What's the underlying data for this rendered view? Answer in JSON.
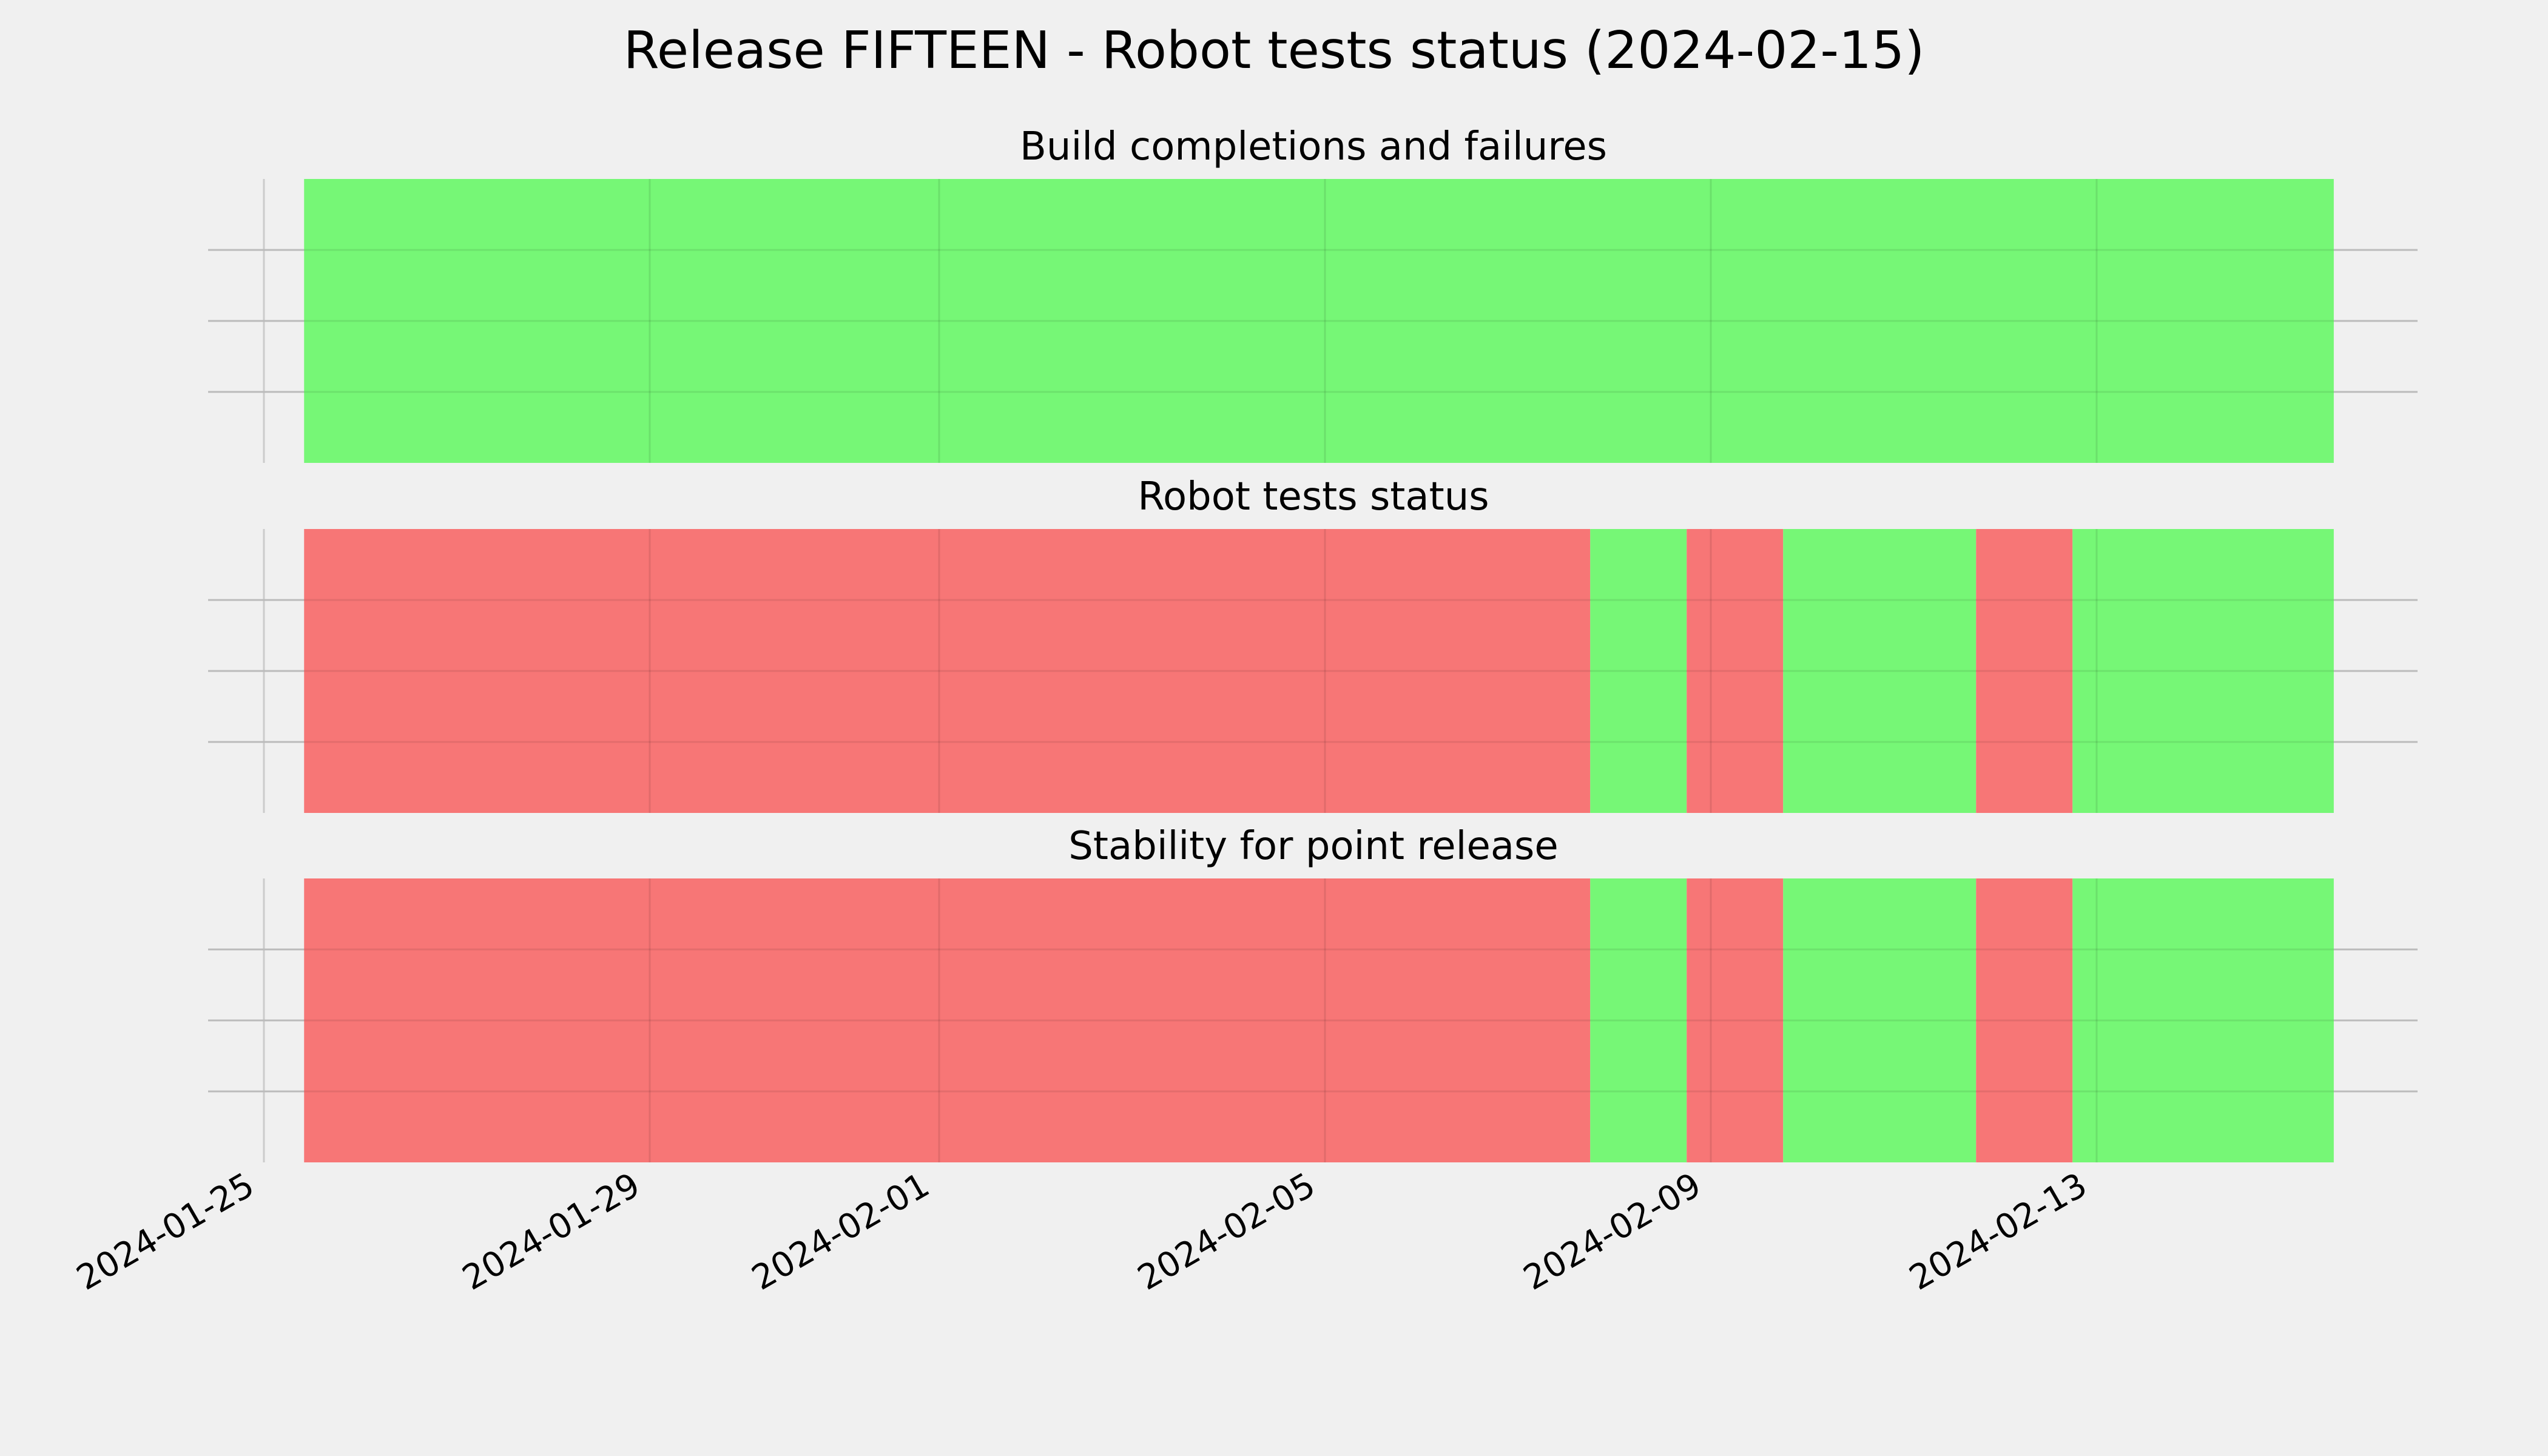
{
  "chart_data": {
    "type": "timeline",
    "title": "Release FIFTEEN - Robot tests status (2024-02-15)",
    "x_axis": {
      "type": "date",
      "range": [
        "2024-01-25",
        "2024-02-16"
      ],
      "ticks": [
        "2024-01-25",
        "2024-01-29",
        "2024-02-01",
        "2024-02-05",
        "2024-02-09",
        "2024-02-13"
      ]
    },
    "grid": true,
    "status_colors": {
      "pass": "#76f776",
      "fail": "#f77676"
    },
    "panels": [
      {
        "title": "Build completions and failures",
        "segments": [
          {
            "start": "2024-01-25T10:00",
            "end": "2024-02-15T11:00",
            "status": "pass"
          }
        ]
      },
      {
        "title": "Robot tests status",
        "segments": [
          {
            "start": "2024-01-25T10:00",
            "end": "2024-02-07T18:00",
            "status": "fail"
          },
          {
            "start": "2024-02-07T18:00",
            "end": "2024-02-08T18:00",
            "status": "pass"
          },
          {
            "start": "2024-02-08T18:00",
            "end": "2024-02-09T18:00",
            "status": "fail"
          },
          {
            "start": "2024-02-09T18:00",
            "end": "2024-02-11T18:00",
            "status": "pass"
          },
          {
            "start": "2024-02-11T18:00",
            "end": "2024-02-12T18:00",
            "status": "fail"
          },
          {
            "start": "2024-02-12T18:00",
            "end": "2024-02-15T11:00",
            "status": "pass"
          }
        ]
      },
      {
        "title": "Stability for point release",
        "segments": [
          {
            "start": "2024-01-25T10:00",
            "end": "2024-02-07T18:00",
            "status": "fail"
          },
          {
            "start": "2024-02-07T18:00",
            "end": "2024-02-08T18:00",
            "status": "pass"
          },
          {
            "start": "2024-02-08T18:00",
            "end": "2024-02-09T18:00",
            "status": "fail"
          },
          {
            "start": "2024-02-09T18:00",
            "end": "2024-02-11T18:00",
            "status": "pass"
          },
          {
            "start": "2024-02-11T18:00",
            "end": "2024-02-12T18:00",
            "status": "fail"
          },
          {
            "start": "2024-02-12T18:00",
            "end": "2024-02-15T11:00",
            "status": "pass"
          }
        ]
      }
    ]
  }
}
